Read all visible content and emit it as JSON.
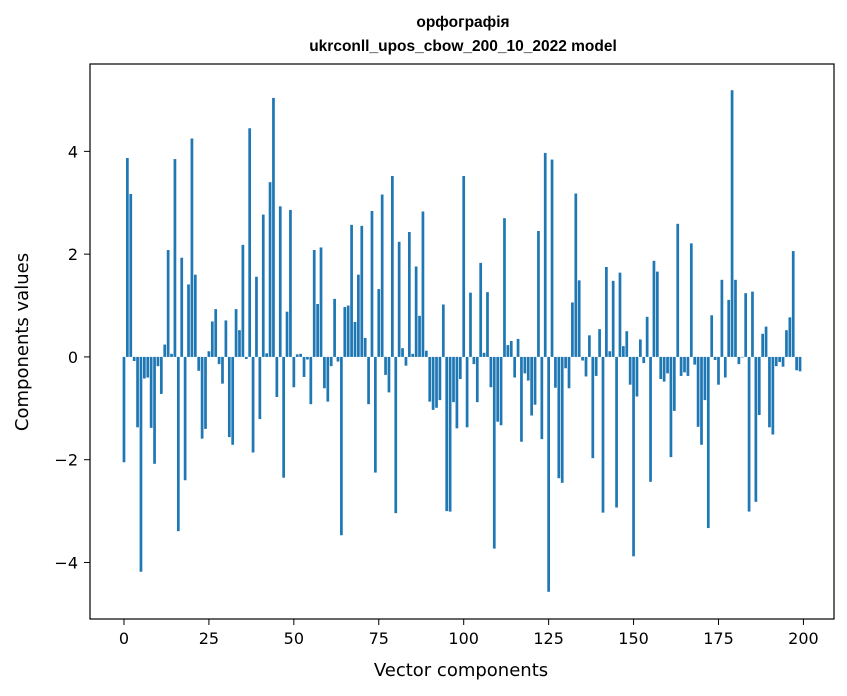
{
  "chart_data": {
    "type": "bar",
    "title": "орфографія",
    "subtitle": "ukrconll_upos_cbow_200_10_2022 model",
    "xlabel": "Vector components",
    "ylabel": "Components values",
    "xlim": [
      -10,
      209
    ],
    "ylim": [
      -5.1,
      5.7
    ],
    "xticks": [
      0,
      25,
      50,
      75,
      100,
      125,
      150,
      175,
      200
    ],
    "yticks": [
      -4,
      -2,
      0,
      2,
      4
    ],
    "ytick_labels": [
      "−4",
      "−2",
      "0",
      "2",
      "4"
    ],
    "bar_color": "#1f77b4",
    "grid": false,
    "legend": "none",
    "series": [
      {
        "values": [
          -2.05,
          3.87,
          3.17,
          -0.08,
          -1.37,
          -4.18,
          -0.42,
          -0.4,
          -1.38,
          -2.08,
          -0.18,
          -0.72,
          0.24,
          2.08,
          0.06,
          3.85,
          -3.39,
          1.93,
          -2.4,
          1.41,
          4.25,
          1.6,
          -0.27,
          -1.59,
          -1.4,
          0.11,
          0.69,
          0.93,
          -0.14,
          -0.52,
          0.71,
          -1.56,
          -1.71,
          0.93,
          0.52,
          2.18,
          -0.04,
          4.45,
          -1.86,
          1.56,
          -1.21,
          2.77,
          0.07,
          3.4,
          5.04,
          -0.78,
          2.93,
          -2.35,
          0.88,
          2.86,
          -0.59,
          0.05,
          0.06,
          -0.39,
          -0.05,
          -0.92,
          2.08,
          1.03,
          2.13,
          -0.61,
          -0.87,
          -0.18,
          1.13,
          -0.09,
          -3.47,
          0.97,
          1.0,
          2.57,
          0.68,
          1.6,
          2.55,
          0.37,
          -0.92,
          2.84,
          -2.25,
          1.32,
          3.16,
          -0.35,
          -0.69,
          3.52,
          -3.04,
          2.24,
          0.17,
          -0.17,
          2.43,
          0.06,
          1.76,
          0.8,
          2.83,
          0.12,
          -0.87,
          -1.03,
          -0.99,
          -0.84,
          1.02,
          -3.0,
          -3.01,
          -0.88,
          -1.39,
          -0.43,
          3.52,
          -1.37,
          1.25,
          -0.14,
          -0.88,
          1.83,
          0.08,
          1.26,
          -0.59,
          -3.73,
          -1.26,
          -1.33,
          2.7,
          0.23,
          0.31,
          -0.4,
          0.35,
          -1.65,
          -0.32,
          -0.46,
          -1.14,
          -0.93,
          2.45,
          -1.6,
          3.97,
          -4.57,
          3.84,
          -0.6,
          -2.36,
          -2.45,
          -0.22,
          -0.61,
          1.06,
          3.18,
          1.49,
          -0.07,
          -0.38,
          0.42,
          -1.97,
          -0.37,
          0.54,
          -3.03,
          1.75,
          0.11,
          1.48,
          -2.93,
          1.64,
          0.21,
          0.5,
          -0.54,
          -3.88,
          -0.77,
          0.34,
          -0.12,
          0.78,
          -2.43,
          1.87,
          1.66,
          -0.43,
          -0.48,
          -0.32,
          -1.95,
          -1.05,
          2.59,
          -0.37,
          -0.3,
          -0.37,
          2.21,
          -0.15,
          -1.36,
          -1.71,
          -0.84,
          -3.33,
          0.81,
          -0.06,
          -0.54,
          1.5,
          -0.4,
          1.11,
          5.19,
          1.5,
          -0.14,
          -0.01,
          1.24,
          -3.01,
          1.27,
          -2.82,
          -1.13,
          0.45,
          0.59,
          -1.37,
          -1.51,
          -0.18,
          -0.1,
          -0.19,
          0.52,
          0.77,
          2.06,
          -0.26,
          -0.28
        ]
      }
    ]
  }
}
